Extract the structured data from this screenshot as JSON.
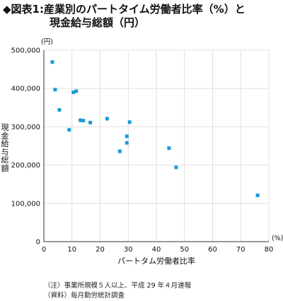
{
  "title": {
    "line1": "◆図表1:産業別のパートタイム労働者比率（%）と",
    "line2": "現金給与総額（円）"
  },
  "chart_data": {
    "type": "scatter",
    "xlabel": "パートタム労働者比率",
    "ylabel": "現金給与総額",
    "x_unit": "(%)",
    "y_unit": "(円)",
    "xlim": [
      0,
      80
    ],
    "ylim": [
      0,
      500000
    ],
    "x_ticks": [
      "0",
      "10",
      "20",
      "30",
      "40",
      "50",
      "60",
      "70",
      "80"
    ],
    "y_ticks": [
      "0",
      "100,000",
      "200,000",
      "300,000",
      "400,000",
      "500,000"
    ],
    "grid": true,
    "point_color": "#1a9bd7",
    "points": [
      {
        "x": 3.0,
        "y": 469000
      },
      {
        "x": 4.0,
        "y": 397000
      },
      {
        "x": 5.5,
        "y": 344000
      },
      {
        "x": 9.0,
        "y": 292000
      },
      {
        "x": 10.5,
        "y": 390000
      },
      {
        "x": 11.5,
        "y": 393000
      },
      {
        "x": 13.0,
        "y": 317000
      },
      {
        "x": 14.0,
        "y": 316000
      },
      {
        "x": 16.5,
        "y": 311000
      },
      {
        "x": 22.5,
        "y": 321000
      },
      {
        "x": 27.0,
        "y": 236000
      },
      {
        "x": 29.5,
        "y": 258000
      },
      {
        "x": 29.5,
        "y": 275000
      },
      {
        "x": 30.5,
        "y": 312000
      },
      {
        "x": 44.5,
        "y": 244000
      },
      {
        "x": 47.0,
        "y": 194000
      },
      {
        "x": 76.0,
        "y": 121000
      }
    ]
  },
  "notes": {
    "note1": "（注）事業所規模５人以上、平成 29 年４月速報",
    "note2": "（資料）毎月勤労統計調査"
  }
}
